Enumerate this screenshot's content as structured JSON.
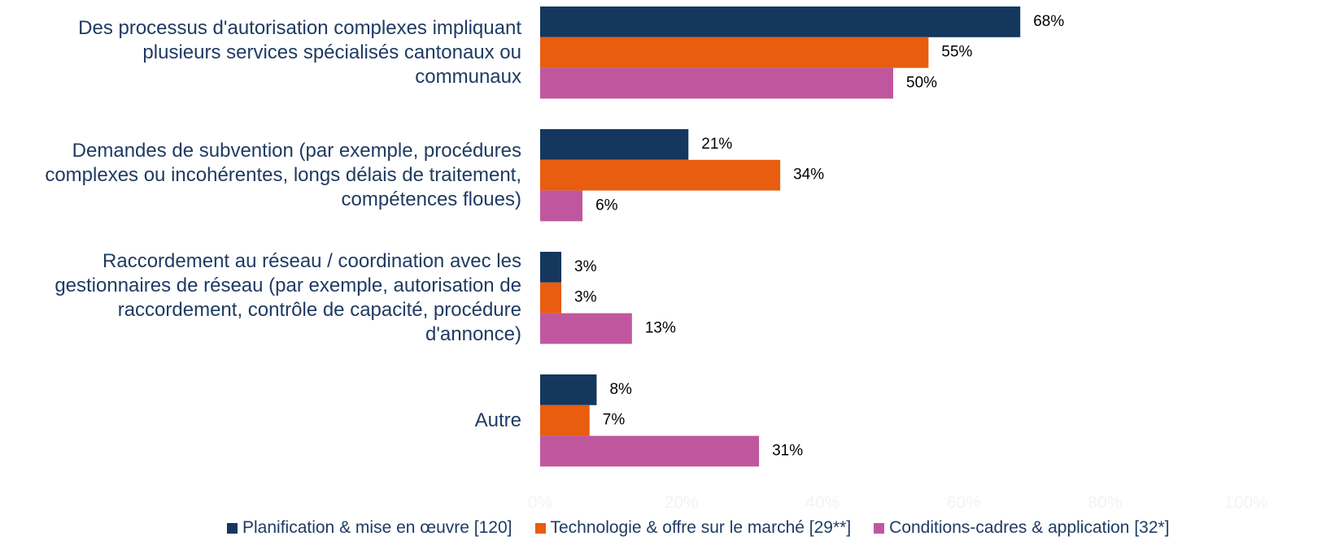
{
  "chart_data": {
    "type": "hbar",
    "categories": [
      "Des processus d'autorisation complexes impliquant\nplusieurs services spécialisés cantonaux ou\ncommunaux",
      "Demandes de subvention (par exemple, procédures\ncomplexes ou incohérentes, longs délais de traitement,\ncompétences floues)",
      "Raccordement au réseau / coordination avec les\ngestionnaires de réseau (par exemple, autorisation de\nraccordement, contrôle de capacité, procédure\nd'annonce)",
      "Autre"
    ],
    "series": [
      {
        "name": "Planification & mise en œuvre [120]",
        "color": "#14375e",
        "values": [
          68,
          21,
          3,
          8
        ],
        "value_labels": [
          "68%",
          "21%",
          "3%",
          "8%"
        ]
      },
      {
        "name": "Technologie & offre sur le marché [29**]",
        "color": "#e85d0f",
        "values": [
          55,
          34,
          3,
          7
        ],
        "value_labels": [
          "55%",
          "34%",
          "3%",
          "7%"
        ]
      },
      {
        "name": "Conditions-cadres & application [32*]",
        "color": "#c0579e",
        "values": [
          50,
          6,
          13,
          31
        ],
        "value_labels": [
          "50%",
          "6%",
          "13%",
          "31%"
        ]
      }
    ],
    "xlim": [
      0,
      100
    ],
    "xticks": [
      {
        "value": 0,
        "label": "0%"
      },
      {
        "value": 20,
        "label": "20%"
      },
      {
        "value": 40,
        "label": "40%"
      },
      {
        "value": 60,
        "label": "60%"
      },
      {
        "value": 80,
        "label": "80%"
      },
      {
        "value": 100,
        "label": "100%"
      }
    ],
    "legend": "bottom"
  }
}
